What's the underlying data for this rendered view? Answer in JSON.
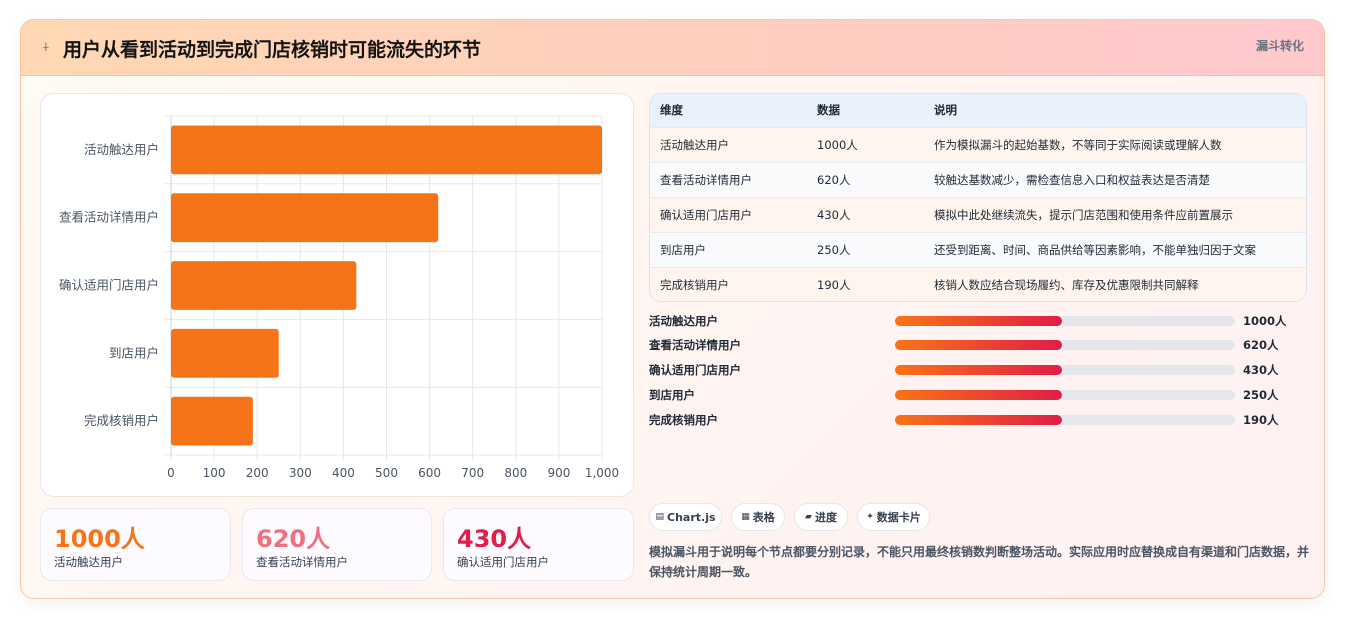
{
  "header": {
    "icon": "funnel-icon",
    "title": "用户从看到活动到完成门店核销时可能流失的环节",
    "tag": "漏斗转化"
  },
  "chart_data": {
    "type": "bar",
    "orientation": "horizontal",
    "categories": [
      "活动触达用户",
      "查看活动详情用户",
      "确认适用门店用户",
      "到店用户",
      "完成核销用户"
    ],
    "values": [
      1000,
      620,
      430,
      250,
      190
    ],
    "xlim": [
      0,
      1000
    ],
    "xticks": [
      "0",
      "100",
      "200",
      "300",
      "400",
      "500",
      "600",
      "700",
      "800",
      "900",
      "1,000"
    ],
    "color": "#f7731a",
    "grid": true
  },
  "stats": [
    {
      "value": "1000人",
      "label": "活动触达用户",
      "color": "#f97316"
    },
    {
      "value": "620人",
      "label": "查看活动详情用户",
      "color": "#f07080"
    },
    {
      "value": "430人",
      "label": "确认适用门店用户",
      "color": "#e11d48"
    }
  ],
  "table": {
    "headers": [
      "维度",
      "数据",
      "说明"
    ],
    "rows": [
      [
        "活动触达用户",
        "1000人",
        "作为模拟漏斗的起始基数，不等同于实际阅读或理解人数"
      ],
      [
        "查看活动详情用户",
        "620人",
        "较触达基数减少，需检查信息入口和权益表达是否清楚"
      ],
      [
        "确认适用门店用户",
        "430人",
        "模拟中此处继续流失，提示门店范围和使用条件应前置展示"
      ],
      [
        "到店用户",
        "250人",
        "还受到距离、时间、商品供给等因素影响，不能单独归因于文案"
      ],
      [
        "完成核销用户",
        "190人",
        "核销人数应结合现场履约、库存及优惠限制共同解释"
      ]
    ]
  },
  "progress": [
    {
      "label": "活动触达用户",
      "value": "1000人",
      "fraction": 0.49
    },
    {
      "label": "查看活动详情用户",
      "value": "620人",
      "fraction": 0.49
    },
    {
      "label": "确认适用门店用户",
      "value": "430人",
      "fraction": 0.49
    },
    {
      "label": "到店用户",
      "value": "250人",
      "fraction": 0.49
    },
    {
      "label": "完成核销用户",
      "value": "190人",
      "fraction": 0.49
    }
  ],
  "chips": [
    {
      "icon": "chart-icon",
      "label": "Chart.js"
    },
    {
      "icon": "table-icon",
      "label": "表格"
    },
    {
      "icon": "progress-icon",
      "label": "进度"
    },
    {
      "icon": "sparkle-icon",
      "label": "数据卡片"
    }
  ],
  "note": "模拟漏斗用于说明每个节点都要分别记录，不能只用最终核销数判断整场活动。实际应用时应替换成自有渠道和门店数据，并保持统计周期一致。"
}
